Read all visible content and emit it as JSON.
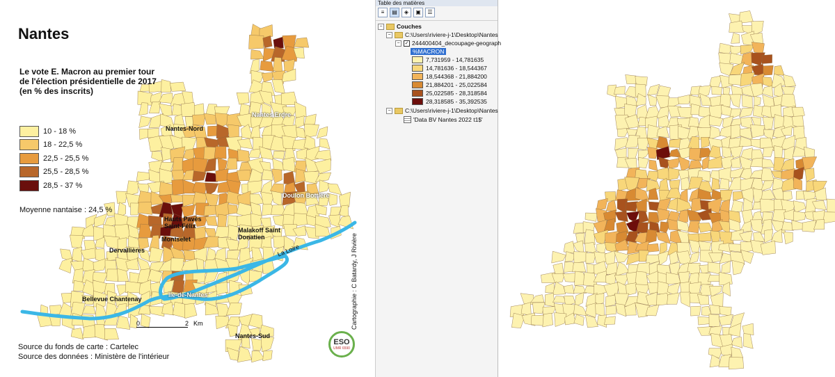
{
  "map": {
    "title": "Nantes",
    "subtitle": "Le vote E. Macron au premier tour de l'élection présidentielle de 2017 (en % des inscrits)",
    "legend": [
      {
        "label": "10 - 18 %",
        "color": "#fdf0a0"
      },
      {
        "label": "18 - 22,5 %",
        "color": "#f6c96a"
      },
      {
        "label": "22,5 - 25,5 %",
        "color": "#e79b3e"
      },
      {
        "label": "25,5 - 28,5 %",
        "color": "#b8672a"
      },
      {
        "label": "28,5 - 37 %",
        "color": "#6a0f0c"
      }
    ],
    "mean": "Moyenne nantaise : 24,5 %",
    "places": [
      {
        "name": "Nantes Erdre"
      },
      {
        "name": "Nantes-Nord"
      },
      {
        "name": "Doulon Bottière"
      },
      {
        "name": "Hauts Pavés Saint-Félix"
      },
      {
        "name": "Malakoff Saint Donatien"
      },
      {
        "name": "Montselet"
      },
      {
        "name": "Dervallières"
      },
      {
        "name": "Bellevue Chantenay"
      },
      {
        "name": "Ile-de-Nantes"
      },
      {
        "name": "Nantes-Sud"
      }
    ],
    "river": "La Loire",
    "scale": {
      "start": "0",
      "end": "2",
      "unit": "Km"
    },
    "credit": "Cartographie : C Batardy, J Rivière",
    "source_fond": "Source du fonds de carte : Cartelec",
    "source_data": "Source des données : Ministère de l'intérieur",
    "logo": {
      "main": "ESO",
      "sub": "UMR 6590"
    }
  },
  "toc": {
    "title": "Table des matières",
    "root": "Couches",
    "folder1": "C:\\Users\\riviere-j-1\\Desktop\\Nantes",
    "layer": "244400404_decoupage-geograph",
    "field": "%MACRON",
    "classes": [
      {
        "label": "7,731959 - 14,781635",
        "color": "#fdf2b0"
      },
      {
        "label": "14,781636 - 18,544367",
        "color": "#f8d77a"
      },
      {
        "label": "18,544368 - 21,884200",
        "color": "#f2b45a"
      },
      {
        "label": "21,884201 - 25,022584",
        "color": "#d88a33"
      },
      {
        "label": "25,022585 - 28,318584",
        "color": "#a8521e"
      },
      {
        "label": "28,318585 - 35,392535",
        "color": "#6d0e0b"
      }
    ],
    "folder2": "C:\\Users\\riviere-j-1\\Desktop\\Nantes",
    "table": "'Data BV Nantes 2022 t1$'"
  },
  "colors": {
    "loire": "#3bb7e6",
    "background": "#ffffff"
  }
}
